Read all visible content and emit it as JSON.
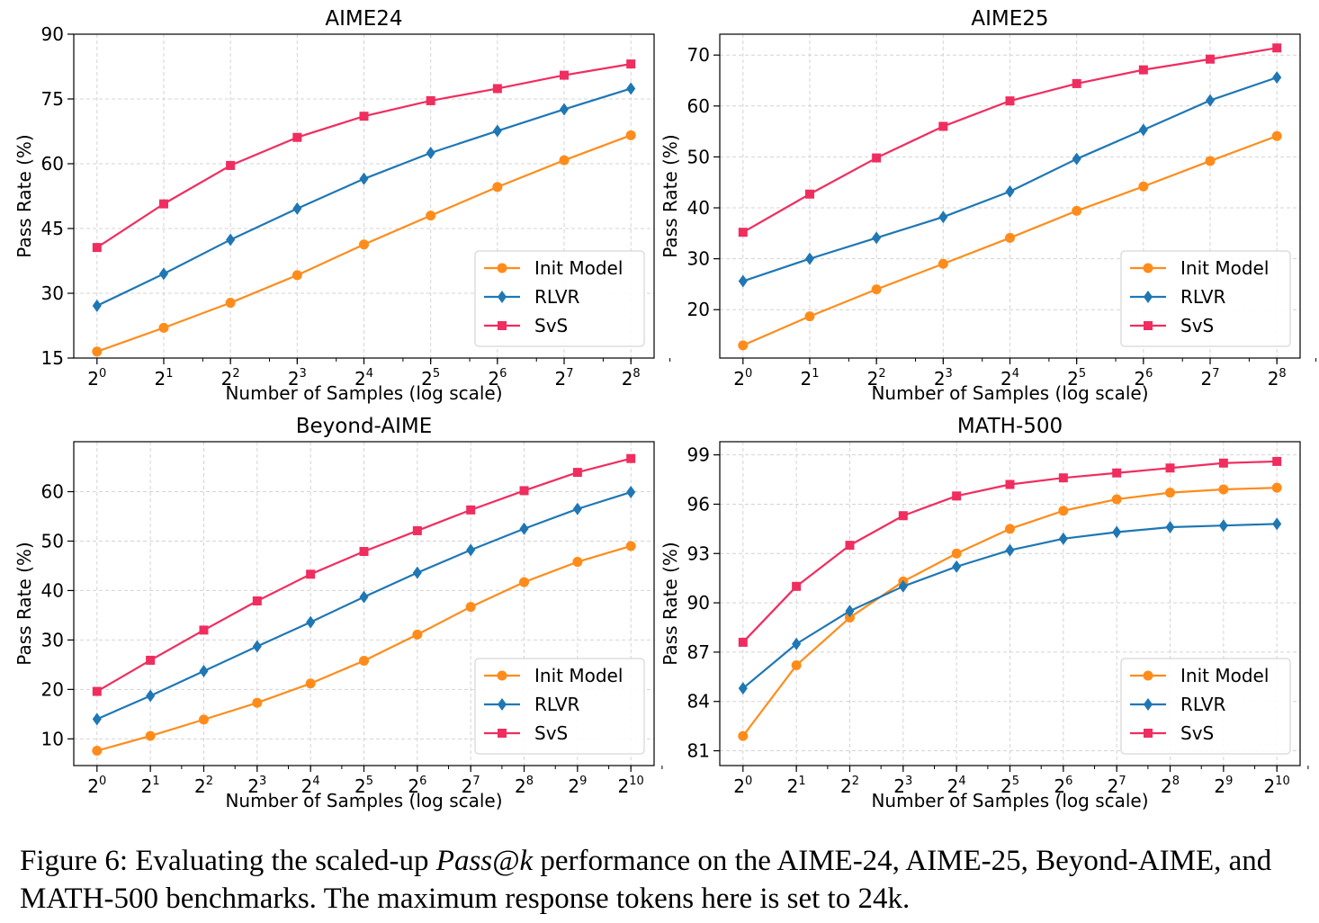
{
  "chart_data": [
    {
      "type": "line",
      "title": "AIME24",
      "xlabel": "Number of Samples (log scale)",
      "ylabel": "Pass Rate (%)",
      "x_exponents": [
        0,
        1,
        2,
        3,
        4,
        5,
        6,
        7,
        8
      ],
      "x_tick_base": "2",
      "ylim": [
        15,
        90
      ],
      "yticks": [
        15,
        30,
        45,
        60,
        75,
        90
      ],
      "legend_position": "lower-right",
      "series": [
        {
          "name": "Init Model",
          "values": [
            16.5,
            22.0,
            27.8,
            34.2,
            41.3,
            48.0,
            54.6,
            60.8,
            66.6
          ]
        },
        {
          "name": "RLVR",
          "values": [
            27.1,
            34.5,
            42.4,
            49.6,
            56.5,
            62.5,
            67.6,
            72.6,
            77.4
          ]
        },
        {
          "name": "SvS",
          "values": [
            40.6,
            50.7,
            59.6,
            66.1,
            71.0,
            74.6,
            77.4,
            80.5,
            83.1
          ]
        }
      ]
    },
    {
      "type": "line",
      "title": "AIME25",
      "xlabel": "Number of Samples (log scale)",
      "ylabel": "Pass Rate (%)",
      "x_exponents": [
        0,
        1,
        2,
        3,
        4,
        5,
        6,
        7,
        8
      ],
      "x_tick_base": "2",
      "ylim": [
        10.5,
        74.1
      ],
      "yticks": [
        20,
        30,
        40,
        50,
        60,
        70
      ],
      "legend_position": "lower-right",
      "series": [
        {
          "name": "Init Model",
          "values": [
            13.0,
            18.7,
            24.0,
            29.0,
            34.1,
            39.4,
            44.2,
            49.2,
            54.1
          ]
        },
        {
          "name": "RLVR",
          "values": [
            25.6,
            30.0,
            34.1,
            38.2,
            43.2,
            49.6,
            55.3,
            61.1,
            65.6
          ]
        },
        {
          "name": "SvS",
          "values": [
            35.2,
            42.7,
            49.8,
            56.0,
            61.0,
            64.4,
            67.1,
            69.2,
            71.4
          ]
        }
      ]
    },
    {
      "type": "line",
      "title": "Beyond-AIME",
      "xlabel": "Number of Samples (log scale)",
      "ylabel": "Pass Rate (%)",
      "x_exponents": [
        0,
        1,
        2,
        3,
        4,
        5,
        6,
        7,
        8,
        9,
        10
      ],
      "x_tick_base": "2",
      "ylim": [
        4.6,
        70.1
      ],
      "yticks": [
        10,
        20,
        30,
        40,
        50,
        60
      ],
      "legend_position": "lower-right",
      "series": [
        {
          "name": "Init Model",
          "values": [
            7.6,
            10.6,
            13.9,
            17.3,
            21.2,
            25.8,
            31.1,
            36.7,
            41.7,
            45.8,
            49.0
          ]
        },
        {
          "name": "RLVR",
          "values": [
            14.0,
            18.7,
            23.7,
            28.7,
            33.6,
            38.7,
            43.6,
            48.2,
            52.5,
            56.5,
            59.9
          ]
        },
        {
          "name": "SvS",
          "values": [
            19.6,
            25.9,
            32.0,
            37.9,
            43.3,
            47.9,
            52.1,
            56.3,
            60.2,
            63.9,
            66.7
          ]
        }
      ]
    },
    {
      "type": "line",
      "title": "MATH-500",
      "xlabel": "Number of Samples (log scale)",
      "ylabel": "Pass Rate (%)",
      "x_exponents": [
        0,
        1,
        2,
        3,
        4,
        5,
        6,
        7,
        8,
        9,
        10
      ],
      "x_tick_base": "2",
      "ylim": [
        80.1,
        99.8
      ],
      "yticks": [
        81,
        84,
        87,
        90,
        93,
        96,
        99
      ],
      "legend_position": "lower-right",
      "series": [
        {
          "name": "Init Model",
          "values": [
            81.9,
            86.2,
            89.1,
            91.3,
            93.0,
            94.5,
            95.6,
            96.3,
            96.7,
            96.9,
            97.0
          ]
        },
        {
          "name": "RLVR",
          "values": [
            84.8,
            87.5,
            89.5,
            91.0,
            92.2,
            93.2,
            93.9,
            94.3,
            94.6,
            94.7,
            94.8
          ]
        },
        {
          "name": "SvS",
          "values": [
            87.6,
            91.0,
            93.5,
            95.3,
            96.5,
            97.2,
            97.6,
            97.9,
            98.2,
            98.5,
            98.6
          ]
        }
      ]
    }
  ],
  "series_colors": {
    "Init Model": "#ff8c1a",
    "RLVR": "#1f77b4",
    "SvS": "#f02d5f"
  },
  "caption": {
    "prefix": "Figure 6: Evaluating the scaled-up ",
    "emphasis": "Pass@k",
    "suffix": " performance on the AIME-24, AIME-25, Beyond-AIME, and MATH-500 benchmarks. The maximum response tokens here is set to 24k."
  }
}
